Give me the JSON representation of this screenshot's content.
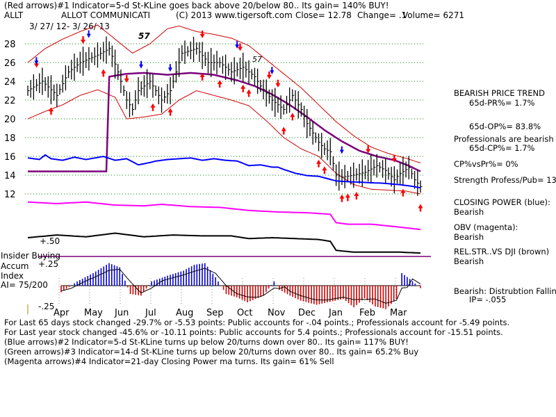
{
  "header": {
    "line1": "(Red arrows)#1 Indicator=5-d St-KLine goes back above 20/below 80.. Its gain= 140% BUY!",
    "ticker": "ALLT",
    "company": "ALLOT COMMUNICATI",
    "copyright": "(C) 2013 www.tigersoft.com",
    "close": "Close= 12.78",
    "change": "Change= .1",
    "volume": "Volume= 6271",
    "date_range": "3/ 27/ 12- 3/ 26/ 13"
  },
  "peak_marks": [
    "57",
    "57"
  ],
  "side_panel": {
    "trend_title": "BEARISH PRICE TREND",
    "pr": "65d-PR%= 1.7%",
    "op": "65d-OP%= 83.8%",
    "pros_title": "Professionals are bearish",
    "cp": "65d-CP%= 1.7%",
    "cpvspr": "CP%vsPr%= 0%",
    "strength": "Strength Profess/Pub= 13",
    "closing_power_label": "CLOSING POWER (blue):",
    "closing_power_value": "Bearish",
    "obv_label": "OBV (magenta):",
    "obv_value": "Bearish",
    "relstr_label": "REL.STR..VS DJI (brown)",
    "relstr_value": "Bearish",
    "distribution": "Bearish: Distrubtion Falling",
    "ip": "IP= -.055"
  },
  "accum": {
    "insider_label": "Insider Buying",
    "accum_label": "Accum",
    "index_label": "Index",
    "ai_label": "AI= 75/200",
    "obv_level": "+.50",
    "level_upper": "+.25",
    "level_lower": "-.25"
  },
  "footer": {
    "line1": "For Last 65 days stock changed -29.7% or -5.53 points:  Public accounts for -.04 points.;  Professionals account for -5.49 points.",
    "line2": "For Last year stock changed -45.6% or -10.11 points:  Public accounts for  5.4 points.;  Professionals account for -15.51 points.",
    "line3": "(Blue arrows)#2 Indicator=5-d St-KLine turns up below 20/turns down over 80.. Its gain= 117% BUY!",
    "line4": "(Green arrows)#3 Indicator=14-d St-KLine turns up below 20/turns down over 80.. Its gain= 65.2% Buy",
    "line5": "(Magenta arrows)#4 Indicator=21-day Closing Power ma turns. Its gain= 61% Sell"
  },
  "colors": {
    "price": "#000000",
    "ma": "#7b007b",
    "band": "#cc0000",
    "grid": "#008000",
    "closing_power": "#0000ff",
    "obv": "#ff00ff",
    "relstr": "#000000",
    "accum_pos": "#0000cc",
    "accum_neg": "#cc0000",
    "buy_arrow": "#ff0000",
    "blue_arrow": "#0000ff"
  },
  "chart_data": {
    "type": "line",
    "title": "ALLT - ALLOT COMMUNICATI",
    "x_ticks": [
      "Apr",
      "May",
      "Jun",
      "Jul",
      "Aug",
      "Sep",
      "Oct",
      "Nov",
      "Dec",
      "Jan",
      "Feb",
      "Mar"
    ],
    "y_ticks": [
      28,
      26,
      24,
      22,
      20,
      18,
      16,
      14,
      12
    ],
    "ylim": [
      10.6,
      30.5
    ],
    "series": [
      {
        "name": "Close",
        "points": [
          [
            0,
            23
          ],
          [
            5,
            24
          ],
          [
            10,
            22.5
          ],
          [
            14,
            25
          ],
          [
            18,
            26
          ],
          [
            24,
            26.8
          ],
          [
            28,
            27.5
          ],
          [
            31,
            25
          ],
          [
            34,
            22
          ],
          [
            36,
            21
          ],
          [
            38,
            23
          ],
          [
            42,
            24
          ],
          [
            46,
            22
          ],
          [
            49,
            23
          ],
          [
            53,
            27
          ],
          [
            58,
            27.5
          ],
          [
            62,
            26
          ],
          [
            66,
            26
          ],
          [
            70,
            25
          ],
          [
            74,
            25.5
          ],
          [
            78,
            24.5
          ],
          [
            80,
            23.5
          ],
          [
            84,
            22
          ],
          [
            88,
            21
          ],
          [
            91,
            22.5
          ],
          [
            94,
            21
          ],
          [
            96,
            19.5
          ],
          [
            98,
            18.5
          ],
          [
            100,
            17.5
          ],
          [
            102,
            16.8
          ],
          [
            104,
            16.5
          ],
          [
            106,
            14
          ],
          [
            108,
            13.8
          ],
          [
            112,
            14
          ],
          [
            116,
            14.3
          ],
          [
            120,
            15
          ],
          [
            123,
            14.5
          ],
          [
            126,
            13.5
          ],
          [
            128,
            14.2
          ],
          [
            131,
            14.8
          ],
          [
            133,
            13.5
          ],
          [
            135,
            12.78
          ]
        ]
      },
      {
        "name": "MA",
        "points": [
          [
            28,
            24.5
          ],
          [
            34,
            24.8
          ],
          [
            40,
            24.9
          ],
          [
            48,
            24.7
          ],
          [
            56,
            24.9
          ],
          [
            64,
            24.7
          ],
          [
            72,
            24.1
          ],
          [
            78,
            23.5
          ],
          [
            84,
            22.6
          ],
          [
            90,
            21.5
          ],
          [
            96,
            20.2
          ],
          [
            102,
            18.8
          ],
          [
            108,
            17.6
          ],
          [
            114,
            16.6
          ],
          [
            120,
            16
          ],
          [
            126,
            15.6
          ],
          [
            131,
            15
          ],
          [
            135,
            14.4
          ]
        ]
      },
      {
        "name": "Upper band",
        "points": [
          [
            0,
            26
          ],
          [
            6,
            27.5
          ],
          [
            12,
            28.5
          ],
          [
            18,
            29.3
          ],
          [
            24,
            30
          ],
          [
            30,
            28.5
          ],
          [
            36,
            27
          ],
          [
            42,
            28
          ],
          [
            48,
            29.6
          ],
          [
            52,
            29.9
          ],
          [
            58,
            29.3
          ],
          [
            64,
            29
          ],
          [
            70,
            28.6
          ],
          [
            76,
            27.8
          ],
          [
            82,
            26.3
          ],
          [
            88,
            24.8
          ],
          [
            94,
            23.3
          ],
          [
            100,
            21.5
          ],
          [
            106,
            19.7
          ],
          [
            112,
            18.2
          ],
          [
            118,
            17
          ],
          [
            124,
            16.3
          ],
          [
            130,
            15.8
          ],
          [
            135,
            15.3
          ]
        ]
      },
      {
        "name": "Lower band",
        "points": [
          [
            0,
            20
          ],
          [
            6,
            20.8
          ],
          [
            12,
            21.5
          ],
          [
            18,
            22.5
          ],
          [
            24,
            23.1
          ],
          [
            30,
            22.3
          ],
          [
            34,
            20
          ],
          [
            40,
            20.2
          ],
          [
            46,
            20.5
          ],
          [
            52,
            22
          ],
          [
            58,
            23
          ],
          [
            64,
            22.5
          ],
          [
            70,
            22
          ],
          [
            76,
            21.4
          ],
          [
            82,
            19.8
          ],
          [
            88,
            18
          ],
          [
            94,
            16.8
          ],
          [
            100,
            16
          ],
          [
            106,
            14.2
          ],
          [
            112,
            13
          ],
          [
            118,
            12.5
          ],
          [
            124,
            12.4
          ],
          [
            130,
            12.3
          ],
          [
            135,
            12
          ]
        ]
      },
      {
        "name": "Closing Power",
        "points": [
          [
            0,
            0.7
          ],
          [
            4,
            0.5
          ],
          [
            6,
            1.1
          ],
          [
            8,
            0.6
          ],
          [
            12,
            0.4
          ],
          [
            16,
            0.8
          ],
          [
            20,
            0.5
          ],
          [
            26,
            0.9
          ],
          [
            30,
            0.4
          ],
          [
            34,
            0.6
          ],
          [
            38,
            -0.2
          ],
          [
            42,
            0.1
          ],
          [
            44,
            0.3
          ],
          [
            48,
            0.5
          ],
          [
            52,
            0.6
          ],
          [
            56,
            0.7
          ],
          [
            60,
            0.4
          ],
          [
            64,
            0.6
          ],
          [
            68,
            0.4
          ],
          [
            72,
            0.3
          ],
          [
            76,
            -0.3
          ],
          [
            80,
            -0.2
          ],
          [
            84,
            -0.5
          ],
          [
            86,
            -0.5
          ],
          [
            88,
            -0.8
          ],
          [
            92,
            -1.3
          ],
          [
            96,
            -1.6
          ],
          [
            100,
            -1.7
          ],
          [
            104,
            -2.1
          ],
          [
            106,
            -2.3
          ],
          [
            110,
            -2.4
          ],
          [
            116,
            -2.5
          ],
          [
            122,
            -2.6
          ],
          [
            128,
            -2.8
          ],
          [
            132,
            -3
          ],
          [
            135,
            -3.2
          ]
        ]
      },
      {
        "name": "OBV",
        "points": [
          [
            0,
            0.3
          ],
          [
            10,
            0.1
          ],
          [
            20,
            0.3
          ],
          [
            30,
            -0.1
          ],
          [
            40,
            -0.2
          ],
          [
            46,
            0
          ],
          [
            56,
            -0.3
          ],
          [
            66,
            -0.4
          ],
          [
            76,
            -0.8
          ],
          [
            86,
            -1.0
          ],
          [
            96,
            -1.1
          ],
          [
            104,
            -1.3
          ],
          [
            106,
            -2.4
          ],
          [
            110,
            -2.6
          ],
          [
            118,
            -2.6
          ],
          [
            126,
            -2.9
          ],
          [
            135,
            -3.3
          ]
        ]
      },
      {
        "name": "Rel.Str vs DJI",
        "points": [
          [
            0,
            0
          ],
          [
            10,
            0.3
          ],
          [
            20,
            0.1
          ],
          [
            30,
            0.5
          ],
          [
            40,
            0.1
          ],
          [
            50,
            0.3
          ],
          [
            60,
            0.2
          ],
          [
            70,
            0.2
          ],
          [
            76,
            -0.1
          ],
          [
            84,
            0
          ],
          [
            92,
            -0.1
          ],
          [
            100,
            -0.2
          ],
          [
            104,
            -0.4
          ],
          [
            106,
            -1.4
          ],
          [
            112,
            -1.6
          ],
          [
            120,
            -1.6
          ],
          [
            128,
            -1.6
          ],
          [
            135,
            -1.7
          ]
        ]
      },
      {
        "name": "Accumulation Index",
        "points": [
          [
            0,
            -0.08
          ],
          [
            6,
            0.05
          ],
          [
            12,
            0.15
          ],
          [
            18,
            0.27
          ],
          [
            22,
            0.22
          ],
          [
            26,
            -0.1
          ],
          [
            30,
            -0.12
          ],
          [
            34,
            0.05
          ],
          [
            40,
            0.12
          ],
          [
            46,
            0.18
          ],
          [
            50,
            0.25
          ],
          [
            54,
            0.27
          ],
          [
            58,
            0.1
          ],
          [
            62,
            -0.1
          ],
          [
            66,
            -0.14
          ],
          [
            70,
            -0.2
          ],
          [
            76,
            -0.12
          ],
          [
            80,
            0.05
          ],
          [
            82,
            -0.05
          ],
          [
            86,
            -0.12
          ],
          [
            90,
            -0.18
          ],
          [
            96,
            -0.23
          ],
          [
            100,
            -0.2
          ],
          [
            106,
            -0.16
          ],
          [
            110,
            -0.26
          ],
          [
            114,
            -0.15
          ],
          [
            118,
            -0.25
          ],
          [
            122,
            -0.28
          ],
          [
            126,
            -0.16
          ],
          [
            128,
            0.15
          ],
          [
            131,
            0.08
          ],
          [
            135,
            -0.03
          ]
        ]
      }
    ],
    "xlabel": "",
    "ylabel": ""
  }
}
